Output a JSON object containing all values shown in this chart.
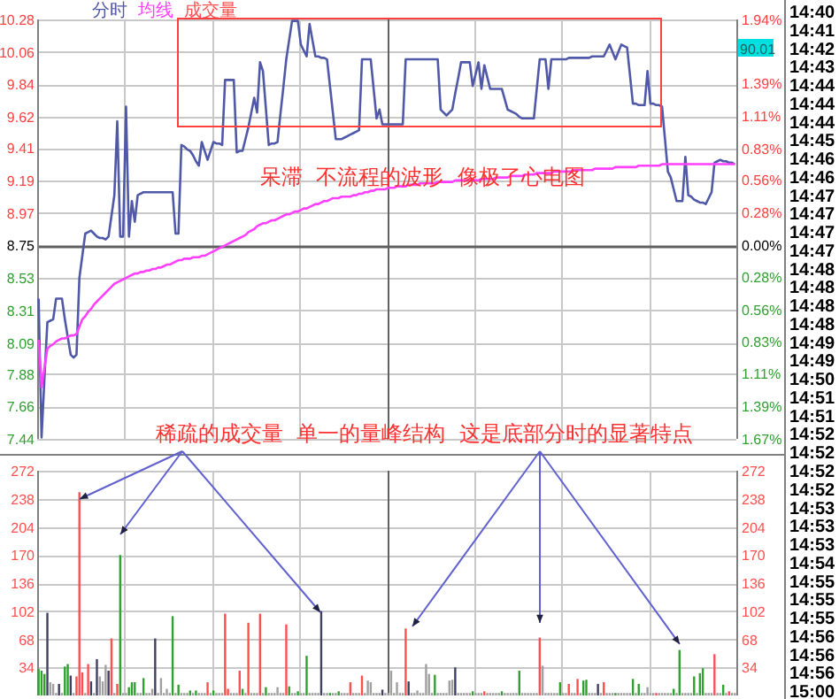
{
  "chart_data": [
    {
      "type": "line",
      "categories": [
        null,
        null,
        null,
        null,
        null,
        null,
        null,
        null,
        null,
        null,
        null,
        null,
        null,
        null,
        null,
        null,
        null,
        null,
        null,
        null,
        null,
        null,
        null,
        null,
        null,
        null,
        null,
        null,
        null,
        null,
        null,
        null,
        null,
        null,
        null,
        null,
        null,
        null,
        null,
        null,
        null,
        null,
        null,
        null,
        null,
        null,
        null,
        null,
        null,
        null,
        null,
        null,
        null,
        null,
        null,
        null,
        null,
        null,
        null,
        null,
        null,
        null,
        null,
        null,
        null,
        null,
        null,
        null,
        null,
        null,
        null,
        null,
        null,
        null,
        null,
        null,
        null,
        null,
        null,
        null,
        null,
        null,
        null,
        null,
        null,
        null,
        null,
        null,
        null,
        null,
        null,
        null,
        null,
        null,
        null,
        null,
        null,
        null,
        null,
        null,
        null,
        null,
        null,
        null,
        null,
        null,
        null,
        null,
        null,
        null,
        null,
        null,
        null,
        null,
        null,
        null,
        null,
        null,
        null,
        null,
        null,
        null,
        null,
        null,
        null,
        null,
        null,
        null,
        null,
        null,
        null,
        null,
        null,
        null,
        null,
        null,
        null,
        null,
        null,
        null,
        null,
        null,
        null,
        null,
        null,
        null,
        null,
        null,
        null,
        null,
        null,
        null,
        null,
        null,
        null,
        null,
        null,
        null,
        null,
        null,
        null,
        null,
        null,
        null,
        null,
        null,
        null,
        null,
        null,
        null,
        null,
        null,
        null,
        null,
        null,
        null,
        null,
        null,
        null,
        null,
        null,
        null,
        null,
        null,
        null,
        null,
        null,
        null,
        null,
        null,
        null,
        null,
        null,
        null,
        null,
        null,
        null,
        null,
        null,
        null,
        null,
        null,
        null,
        null,
        null,
        null,
        null,
        null,
        null,
        null,
        null,
        null,
        null,
        null,
        null,
        null,
        null,
        null,
        null,
        null,
        null,
        null,
        null,
        null,
        null,
        null,
        null,
        null,
        null,
        null,
        null,
        null,
        null,
        null,
        null,
        null,
        null,
        null,
        null,
        null
      ],
      "ylim": [
        7.44,
        10.28
      ],
      "yticks": [
        10.28,
        10.06,
        9.84,
        9.62,
        9.41,
        9.19,
        8.97,
        8.75,
        8.53,
        8.31,
        8.09,
        7.88,
        7.66,
        7.44
      ],
      "y2lim": [
        -1.67,
        1.94
      ],
      "y2ticks": [
        {
          "value": 1.94,
          "label": "1.94%"
        },
        {
          "value": 1.39,
          "label": "1.39%"
        },
        {
          "value": 1.11,
          "label": "1.11%"
        },
        {
          "value": 0.83,
          "label": "0.83%"
        },
        {
          "value": 0.56,
          "label": "0.56%"
        },
        {
          "value": 0.28,
          "label": "0.28%"
        },
        {
          "value": 0,
          "label": "0.00%"
        },
        {
          "value": -0.28,
          "label": "0.28%"
        },
        {
          "value": -0.56,
          "label": "0.56%"
        },
        {
          "value": -0.83,
          "label": "0.83%"
        },
        {
          "value": -1.11,
          "label": "1.11%"
        },
        {
          "value": -1.39,
          "label": "1.39%"
        },
        {
          "value": -1.67,
          "label": "1.67%"
        }
      ],
      "grid": true,
      "tick_labels": "y",
      "ref_lines": [
        {
          "axis": "y",
          "value": 8.75,
          "color": "#606060"
        }
      ],
      "series": [
        {
          "name": "分时",
          "color": "#5058a8",
          "values": [
            8.39,
            7.45,
            7.85,
            8.23,
            8.24,
            8.25,
            8.39,
            8.39,
            8.39,
            8.25,
            8.13,
            8.01,
            7.99,
            8.01,
            8.53,
            8.68,
            8.83,
            8.84,
            8.85,
            8.83,
            8.81,
            8.8,
            8.8,
            8.79,
            8.81,
            8.95,
            9.09,
            9.59,
            8.81,
            8.81,
            9.69,
            8.81,
            9.05,
            8.91,
            9.09,
            9.1,
            9.11,
            9.11,
            9.11,
            9.11,
            9.11,
            9.11,
            9.11,
            9.11,
            9.11,
            9.11,
            9.11,
            8.83,
            8.83,
            9.43,
            9.42,
            9.4,
            9.39,
            9.36,
            9.32,
            9.29,
            9.45,
            9.39,
            9.33,
            9.39,
            9.45,
            9.44,
            9.44,
            9.43,
            9.87,
            9.87,
            9.87,
            9.87,
            9.38,
            9.39,
            9.39,
            9.47,
            9.55,
            9.65,
            9.75,
            9.65,
            9.99,
            9.93,
            9.68,
            9.43,
            9.44,
            9.44,
            9.45,
            9.64,
            9.82,
            10.01,
            10.14,
            10.27,
            10.27,
            10.27,
            10.11,
            10.07,
            10.03,
            10.25,
            10.14,
            10.03,
            10.03,
            10.02,
            10.02,
            10.01,
            9.83,
            9.65,
            9.47,
            9.47,
            9.47,
            9.48,
            9.49,
            9.5,
            9.51,
            9.52,
            9.53,
            10.01,
            10.01,
            10.01,
            10.01,
            9.81,
            9.61,
            9.67,
            9.57,
            9.57,
            9.57,
            9.57,
            9.57,
            9.57,
            9.57,
            9.57,
            10.01,
            10.01,
            10.01,
            10.01,
            10.01,
            10.01,
            10.01,
            10.01,
            10.01,
            10.01,
            10.01,
            10.01,
            9.67,
            9.65,
            9.63,
            9.65,
            9.67,
            9.78,
            9.88,
            9.99,
            9.99,
            9.99,
            9.99,
            9.83,
            9.91,
            9.99,
            9.81,
            9.97,
            9.89,
            9.81,
            9.81,
            9.81,
            9.81,
            9.81,
            9.74,
            9.67,
            9.66,
            9.65,
            9.64,
            9.62,
            9.61,
            9.61,
            9.61,
            9.61,
            9.61,
            9.81,
            10.01,
            10.01,
            10.01,
            9.81,
            10.01,
            10.01,
            10.01,
            10.01,
            10.01,
            10.01,
            10.02,
            10.02,
            10.02,
            10.02,
            10.02,
            10.02,
            10.02,
            10.02,
            10.03,
            10.03,
            10.03,
            10.03,
            10.03,
            10.07,
            10.11,
            10.06,
            10.01,
            10.06,
            10.11,
            10.1,
            10.09,
            9.9,
            9.71,
            9.71,
            9.7,
            9.7,
            9.7,
            9.93,
            9.71,
            9.71,
            9.7,
            9.7,
            9.69,
            9.47,
            9.25,
            9.21,
            9.13,
            9.05,
            9.05,
            9.05,
            9.35,
            9.09,
            9.08,
            9.06,
            9.05,
            9.04,
            9.04,
            9.03,
            9.07,
            9.11,
            9.31,
            9.32,
            9.33,
            9.32,
            9.32,
            9.31,
            9.31,
            9.3
          ]
        },
        {
          "name": "均线",
          "color": "#ff40ff",
          "values": [
            8.11,
            7.79,
            7.92,
            8.05,
            8.07,
            8.08,
            8.1,
            8.11,
            8.12,
            8.12,
            8.13,
            8.14,
            8.14,
            8.15,
            8.2,
            8.25,
            8.27,
            8.3,
            8.32,
            8.35,
            8.37,
            8.39,
            8.41,
            8.43,
            8.45,
            8.47,
            8.49,
            8.5,
            8.51,
            8.52,
            8.53,
            8.54,
            8.55,
            8.56,
            8.56,
            8.57,
            8.57,
            8.58,
            8.58,
            8.59,
            8.59,
            8.6,
            8.6,
            8.61,
            8.62,
            8.62,
            8.63,
            8.64,
            8.65,
            8.65,
            8.66,
            8.66,
            8.66,
            8.67,
            8.67,
            8.67,
            8.68,
            8.68,
            8.69,
            8.7,
            8.71,
            8.72,
            8.73,
            8.74,
            8.75,
            8.76,
            8.77,
            8.78,
            8.79,
            8.8,
            8.81,
            8.82,
            8.84,
            8.85,
            8.86,
            8.88,
            8.89,
            8.9,
            8.9,
            8.91,
            8.92,
            8.92,
            8.93,
            8.94,
            8.95,
            8.96,
            8.96,
            8.97,
            8.98,
            8.98,
            8.99,
            9.0,
            9.0,
            9.01,
            9.02,
            9.03,
            9.03,
            9.04,
            9.05,
            9.05,
            9.06,
            9.07,
            9.07,
            9.07,
            9.08,
            9.08,
            9.08,
            9.08,
            9.09,
            9.09,
            9.1,
            9.1,
            9.11,
            9.11,
            9.12,
            9.12,
            9.13,
            9.13,
            9.13,
            9.13,
            9.14,
            9.14,
            9.14,
            9.15,
            9.15,
            9.15,
            9.15,
            9.16,
            9.16,
            9.16,
            9.16,
            9.17,
            9.17,
            9.17,
            9.17,
            9.17,
            9.17,
            9.18,
            9.18,
            9.18,
            9.18,
            9.18,
            9.18,
            9.19,
            9.19,
            9.19,
            9.19,
            9.19,
            9.19,
            9.19,
            9.19,
            9.19,
            9.2,
            9.2,
            9.2,
            9.2,
            9.2,
            9.21,
            9.21,
            9.21,
            9.21,
            9.21,
            9.22,
            9.22,
            9.22,
            9.22,
            9.22,
            9.23,
            9.23,
            9.23,
            9.23,
            9.24,
            9.24,
            9.24,
            9.24,
            9.24,
            9.24,
            9.25,
            9.25,
            9.25,
            9.25,
            9.25,
            9.25,
            9.25,
            9.26,
            9.26,
            9.26,
            9.26,
            9.26,
            9.26,
            9.26,
            9.27,
            9.27,
            9.27,
            9.27,
            9.27,
            9.27,
            9.27,
            9.28,
            9.28,
            9.28,
            9.28,
            9.28,
            9.28,
            9.28,
            9.28,
            9.29,
            9.29,
            9.29,
            9.29,
            9.29,
            9.29,
            9.29,
            9.29,
            9.3,
            9.3,
            9.3,
            9.3,
            9.3,
            9.3,
            9.3,
            9.3,
            9.3,
            9.3,
            9.3,
            9.3,
            9.3,
            9.3,
            9.3,
            9.3,
            9.3,
            9.3,
            9.3,
            9.3,
            9.3,
            9.3,
            9.3,
            9.3,
            9.3,
            9.3
          ]
        }
      ],
      "annotations": [
        "呆滞  不流程的波形  像极了心电图",
        "稀疏的成交量  单一的量峰结构  这是底部分时的显著特点",
        "90.01",
        "14:40",
        "14:41",
        "14:42",
        "14:43",
        "14:44",
        "14:44",
        "14:44",
        "14:45",
        "14:46",
        "14:46",
        "14:47",
        "14:47",
        "14:47",
        "14:47",
        "14:48",
        "14:48",
        "14:48",
        "14:48",
        "14:49",
        "14:49",
        "14:50",
        "14:51",
        "14:51",
        "14:52",
        "14:52",
        "14:52",
        "14:52",
        "14:53",
        "14:53",
        "14:53",
        "14:54",
        "14:55",
        "14:55",
        "14:55",
        "14:56",
        "14:56",
        "14:56",
        "15:00"
      ]
    },
    {
      "type": "bar",
      "categories": [
        null,
        null,
        null,
        null,
        null,
        null,
        null,
        null,
        null,
        null,
        null,
        null,
        null,
        null,
        null,
        null,
        null,
        null,
        null,
        null,
        null,
        null,
        null,
        null,
        null,
        null,
        null,
        null,
        null,
        null,
        null,
        null,
        null,
        null,
        null,
        null,
        null,
        null,
        null,
        null,
        null,
        null,
        null,
        null,
        null,
        null,
        null,
        null,
        null,
        null,
        null,
        null,
        null,
        null,
        null,
        null,
        null,
        null,
        null,
        null,
        null,
        null,
        null,
        null,
        null,
        null,
        null,
        null,
        null,
        null,
        null,
        null,
        null,
        null,
        null,
        null,
        null,
        null,
        null,
        null,
        null,
        null,
        null,
        null,
        null,
        null,
        null,
        null,
        null,
        null,
        null,
        null,
        null,
        null,
        null,
        null,
        null,
        null,
        null,
        null,
        null,
        null,
        null,
        null,
        null,
        null,
        null,
        null,
        null,
        null,
        null,
        null,
        null,
        null,
        null,
        null,
        null,
        null,
        null,
        null,
        null,
        null,
        null,
        null,
        null,
        null,
        null,
        null,
        null,
        null,
        null,
        null,
        null,
        null,
        null,
        null,
        null,
        null,
        null,
        null,
        null,
        null,
        null,
        null,
        null,
        null,
        null,
        null,
        null,
        null,
        null,
        null,
        null,
        null,
        null,
        null,
        null,
        null,
        null,
        null,
        null,
        null,
        null,
        null,
        null,
        null,
        null,
        null,
        null,
        null,
        null,
        null,
        null,
        null,
        null,
        null,
        null,
        null,
        null,
        null,
        null,
        null,
        null,
        null,
        null,
        null,
        null,
        null,
        null,
        null,
        null,
        null,
        null,
        null,
        null,
        null,
        null,
        null,
        null,
        null,
        null,
        null,
        null,
        null,
        null,
        null,
        null,
        null,
        null,
        null,
        null,
        null,
        null,
        null,
        null,
        null,
        null,
        null,
        null,
        null,
        null,
        null,
        null,
        null,
        null,
        null,
        null,
        null,
        null,
        null,
        null,
        null,
        null,
        null,
        null,
        null,
        null,
        null,
        null,
        null
      ],
      "ylim": [
        0,
        272
      ],
      "yticks": [
        34,
        68,
        102,
        136,
        170,
        204,
        238,
        272
      ],
      "y2lim": [
        0,
        272
      ],
      "y2ticks": [
        34,
        68,
        102,
        136,
        170,
        204,
        238,
        272
      ],
      "grid": true,
      "tick_labels": "y",
      "series": [
        {
          "name": "成交量",
          "color": "#ff5050",
          "values": [
            32,
            30,
            26,
            100,
            16,
            14,
            3,
            14,
            3,
            35,
            38,
            24,
            3,
            23,
            246,
            28,
            3,
            38,
            17,
            3,
            44,
            23,
            17,
            37,
            30,
            69,
            3,
            14,
            170,
            3,
            3,
            10,
            16,
            16,
            3,
            3,
            21,
            3,
            3,
            8,
            69,
            3,
            21,
            3,
            8,
            3,
            96,
            3,
            13,
            3,
            3,
            3,
            6,
            3,
            6,
            3,
            3,
            3,
            16,
            3,
            6,
            3,
            3,
            3,
            99,
            8,
            3,
            3,
            3,
            30,
            8,
            3,
            88,
            3,
            3,
            3,
            99,
            3,
            10,
            3,
            3,
            3,
            10,
            3,
            3,
            86,
            11,
            3,
            3,
            5,
            3,
            3,
            48,
            3,
            3,
            3,
            3,
            102,
            3,
            3,
            3,
            3,
            3,
            5,
            3,
            3,
            3,
            16,
            3,
            3,
            3,
            24,
            3,
            18,
            16,
            3,
            3,
            3,
            7,
            3,
            3,
            30,
            3,
            16,
            3,
            3,
            81,
            17,
            3,
            3,
            6,
            3,
            3,
            38,
            26,
            3,
            25,
            3,
            3,
            3,
            3,
            18,
            19,
            34,
            3,
            3,
            3,
            3,
            3,
            5,
            3,
            3,
            3,
            5,
            3,
            3,
            3,
            3,
            3,
            5,
            3,
            3,
            3,
            3,
            3,
            30,
            3,
            3,
            3,
            3,
            3,
            3,
            70,
            36,
            3,
            3,
            3,
            3,
            3,
            16,
            3,
            3,
            14,
            3,
            3,
            20,
            3,
            18,
            19,
            3,
            3,
            3,
            14,
            3,
            16,
            3,
            3,
            3,
            3,
            3,
            3,
            3,
            3,
            3,
            20,
            3,
            14,
            3,
            3,
            10,
            3,
            3,
            3,
            3,
            3,
            3,
            3,
            3,
            8,
            3,
            55,
            3,
            3,
            3,
            3,
            23,
            3,
            27,
            33,
            3,
            3,
            3,
            50,
            3,
            3,
            13,
            3,
            5,
            3,
            3
          ],
          "colors": [
            "#30a030",
            "#30a030",
            "#30a030",
            "#404060",
            "#a0a0a0",
            "#a0a0a0",
            "#a0a0a0",
            "#404060",
            "#a0a0a0",
            "#30a030",
            "#30a030",
            "#404060",
            "#a0a0a0",
            "#ff5050",
            "#ff5050",
            "#ff5050",
            "#a0a0a0",
            "#ff5050",
            "#404060",
            "#a0a0a0",
            "#404060",
            "#a0a0a0",
            "#a0a0a0",
            "#a0a0a0",
            "#404060",
            "#ff5050",
            "#a0a0a0",
            "#ff5050",
            "#30a030",
            "#a0a0a0",
            "#a0a0a0",
            "#30a030",
            "#30a030",
            "#30a030",
            "#a0a0a0",
            "#a0a0a0",
            "#30a030",
            "#a0a0a0",
            "#a0a0a0",
            "#a0a0a0",
            "#404060",
            "#a0a0a0",
            "#a0a0a0",
            "#a0a0a0",
            "#a0a0a0",
            "#a0a0a0",
            "#30a030",
            "#a0a0a0",
            "#30a030",
            "#a0a0a0",
            "#a0a0a0",
            "#a0a0a0",
            "#30a030",
            "#a0a0a0",
            "#30a030",
            "#a0a0a0",
            "#a0a0a0",
            "#a0a0a0",
            "#ff5050",
            "#a0a0a0",
            "#30a030",
            "#a0a0a0",
            "#a0a0a0",
            "#a0a0a0",
            "#ff5050",
            "#ff5050",
            "#a0a0a0",
            "#a0a0a0",
            "#a0a0a0",
            "#ff5050",
            "#30a030",
            "#a0a0a0",
            "#ff5050",
            "#a0a0a0",
            "#a0a0a0",
            "#a0a0a0",
            "#ff5050",
            "#a0a0a0",
            "#30a030",
            "#a0a0a0",
            "#a0a0a0",
            "#a0a0a0",
            "#a0a0a0",
            "#a0a0a0",
            "#a0a0a0",
            "#ff5050",
            "#30a030",
            "#a0a0a0",
            "#a0a0a0",
            "#30a030",
            "#a0a0a0",
            "#a0a0a0",
            "#30a030",
            "#a0a0a0",
            "#a0a0a0",
            "#a0a0a0",
            "#a0a0a0",
            "#404060",
            "#a0a0a0",
            "#a0a0a0",
            "#30a030",
            "#a0a0a0",
            "#a0a0a0",
            "#30a030",
            "#a0a0a0",
            "#a0a0a0",
            "#a0a0a0",
            "#ff5050",
            "#a0a0a0",
            "#a0a0a0",
            "#a0a0a0",
            "#ff5050",
            "#a0a0a0",
            "#a0a0a0",
            "#a0a0a0",
            "#a0a0a0",
            "#a0a0a0",
            "#a0a0a0",
            "#404060",
            "#a0a0a0",
            "#a0a0a0",
            "#a0a0a0",
            "#a0a0a0",
            "#a0a0a0",
            "#a0a0a0",
            "#a0a0a0",
            "#ff5050",
            "#404060",
            "#a0a0a0",
            "#a0a0a0",
            "#a0a0a0",
            "#a0a0a0",
            "#a0a0a0",
            "#a0a0a0",
            "#a0a0a0",
            "#a0a0a0",
            "#30a030",
            "#a0a0a0",
            "#a0a0a0",
            "#a0a0a0",
            "#a0a0a0",
            "#a0a0a0",
            "#a0a0a0",
            "#404060",
            "#a0a0a0",
            "#a0a0a0",
            "#a0a0a0",
            "#a0a0a0",
            "#a0a0a0",
            "#30a030",
            "#a0a0a0",
            "#a0a0a0",
            "#a0a0a0",
            "#ff5050",
            "#a0a0a0",
            "#a0a0a0",
            "#a0a0a0",
            "#a0a0a0",
            "#a0a0a0",
            "#30a030",
            "#a0a0a0",
            "#a0a0a0",
            "#a0a0a0",
            "#a0a0a0",
            "#a0a0a0",
            "#30a030",
            "#a0a0a0",
            "#a0a0a0",
            "#a0a0a0",
            "#a0a0a0",
            "#a0a0a0",
            "#a0a0a0",
            "#ff5050",
            "#a0a0a0",
            "#a0a0a0",
            "#a0a0a0",
            "#a0a0a0",
            "#a0a0a0",
            "#a0a0a0",
            "#30a030",
            "#a0a0a0",
            "#a0a0a0",
            "#ff5050",
            "#a0a0a0",
            "#a0a0a0",
            "#ff5050",
            "#a0a0a0",
            "#30a030",
            "#30a030",
            "#a0a0a0",
            "#a0a0a0",
            "#a0a0a0",
            "#404060",
            "#a0a0a0",
            "#ff5050",
            "#a0a0a0",
            "#a0a0a0",
            "#a0a0a0",
            "#30a030",
            "#a0a0a0",
            "#a0a0a0",
            "#a0a0a0",
            "#a0a0a0",
            "#a0a0a0",
            "#30a030",
            "#a0a0a0",
            "#30a030",
            "#a0a0a0",
            "#a0a0a0",
            "#a0a0a0",
            "#a0a0a0",
            "#a0a0a0",
            "#ff5050",
            "#a0a0a0",
            "#a0a0a0",
            "#a0a0a0",
            "#a0a0a0",
            "#a0a0a0",
            "#30a030",
            "#a0a0a0",
            "#30a030",
            "#a0a0a0",
            "#a0a0a0",
            "#a0a0a0",
            "#a0a0a0",
            "#30a030",
            "#a0a0a0",
            "#30a030",
            "#30a030",
            "#a0a0a0",
            "#a0a0a0",
            "#a0a0a0",
            "#ff5050",
            "#a0a0a0",
            "#a0a0a0",
            "#30a030",
            "#a0a0a0",
            "#ff5050",
            "#a0a0a0",
            "#a0a0a0"
          ]
        }
      ]
    }
  ]
}
